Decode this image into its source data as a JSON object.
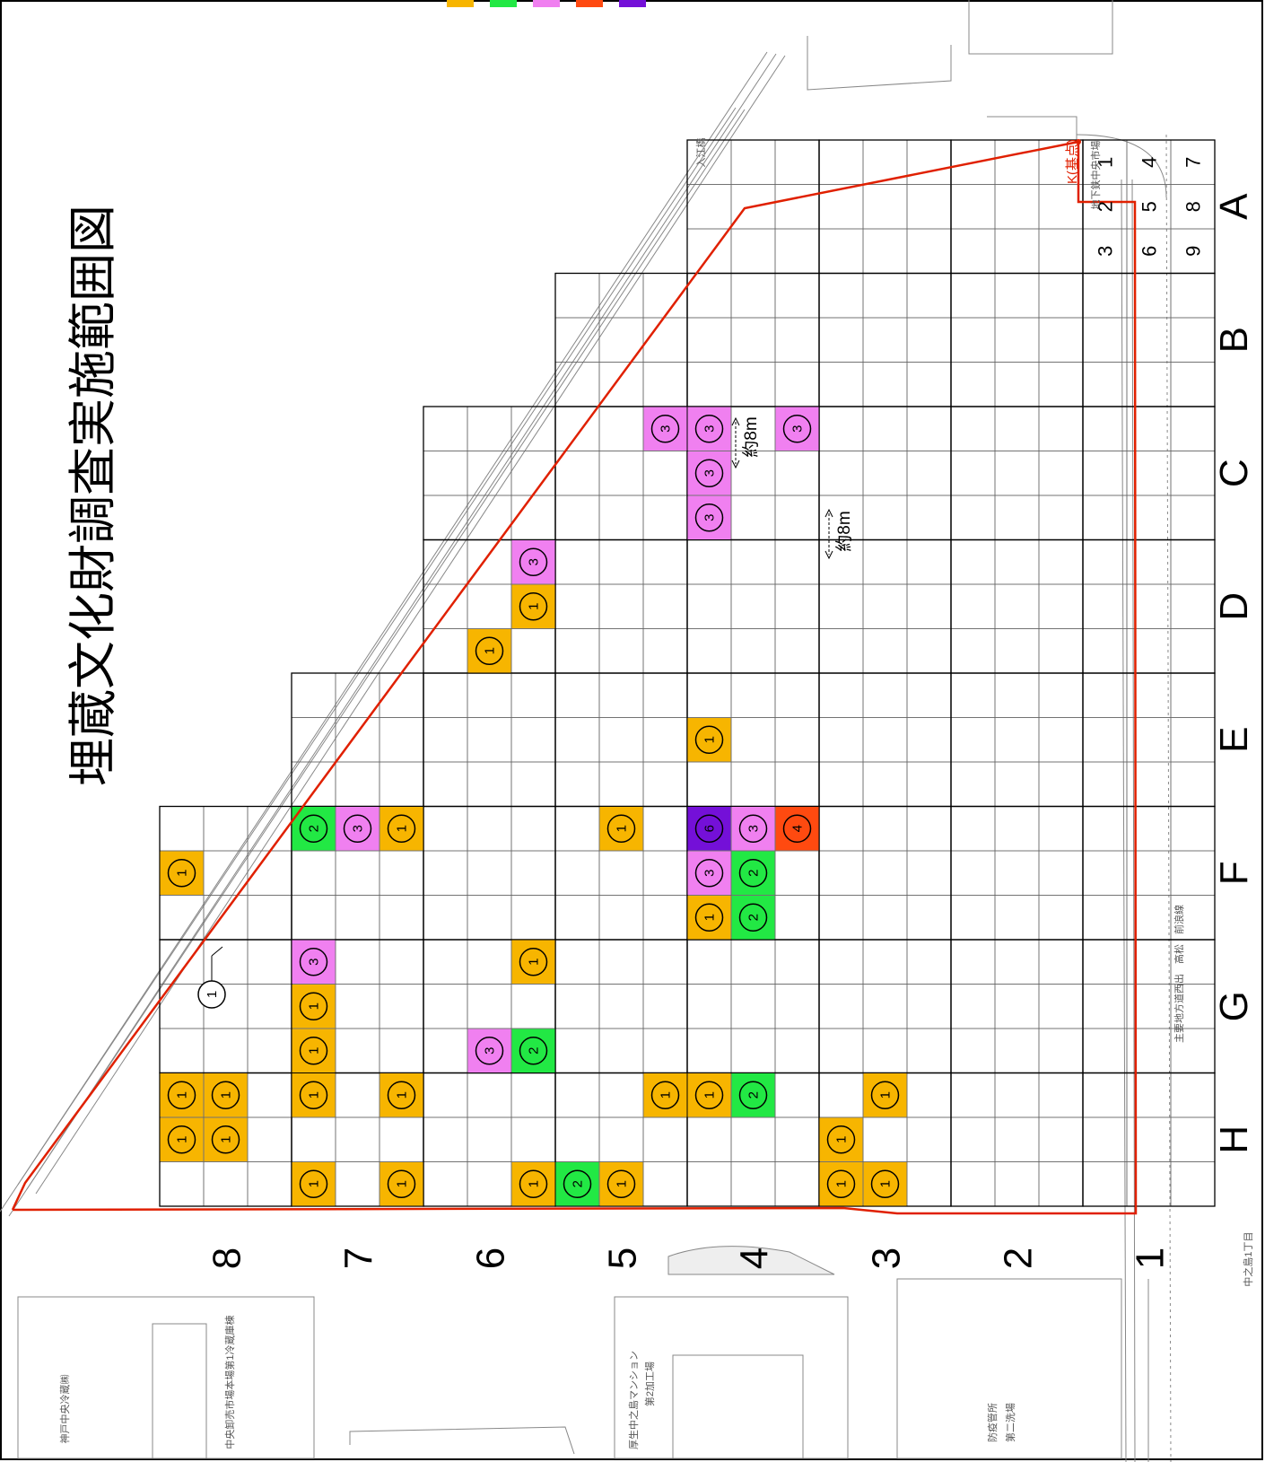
{
  "title": "埋蔵文化財調査実施範囲図",
  "colors": {
    "level1": "#F7B500",
    "level2": "#22E844",
    "level3": "#F080F0",
    "level4": "#FF4A10",
    "level6": "#7410D8",
    "boundary": "#E02000",
    "grid": "#000000"
  },
  "legend_swatches": [
    "level1",
    "level2",
    "level3",
    "level4",
    "level6"
  ],
  "columns": [
    {
      "label": "A"
    },
    {
      "label": "B"
    },
    {
      "label": "C"
    },
    {
      "label": "D"
    },
    {
      "label": "E"
    },
    {
      "label": "F"
    },
    {
      "label": "G"
    },
    {
      "label": "H"
    }
  ],
  "rows": [
    {
      "label": "8"
    },
    {
      "label": "7"
    },
    {
      "label": "6"
    },
    {
      "label": "5"
    },
    {
      "label": "4"
    },
    {
      "label": "3"
    },
    {
      "label": "2"
    },
    {
      "label": "1"
    }
  ],
  "subgrid_numbers": [
    "1",
    "2",
    "3",
    "4",
    "5",
    "6",
    "7",
    "8",
    "9"
  ],
  "cells": [
    {
      "col": "C",
      "row": "5",
      "sub": "7",
      "value": "3"
    },
    {
      "col": "C",
      "row": "4",
      "sub": "7",
      "value": "3"
    },
    {
      "col": "C",
      "row": "4",
      "sub": "3",
      "value": "3"
    },
    {
      "col": "C",
      "row": "4",
      "sub": "2",
      "value": "3"
    },
    {
      "col": "C",
      "row": "4",
      "sub": "1",
      "value": "3"
    },
    {
      "col": "D",
      "row": "6",
      "sub": "7",
      "value": "3"
    },
    {
      "col": "D",
      "row": "6",
      "sub": "8",
      "value": "1"
    },
    {
      "col": "D",
      "row": "6",
      "sub": "6",
      "value": "1"
    },
    {
      "col": "E",
      "row": "4",
      "sub": "2",
      "value": "1"
    },
    {
      "col": "F",
      "row": "7",
      "sub": "7",
      "value": "1"
    },
    {
      "col": "F",
      "row": "7",
      "sub": "4",
      "value": "3"
    },
    {
      "col": "F",
      "row": "7",
      "sub": "1",
      "value": "2"
    },
    {
      "col": "F",
      "row": "8",
      "sub": "2",
      "value": "1"
    },
    {
      "col": "F",
      "row": "5",
      "sub": "4",
      "value": "1"
    },
    {
      "col": "F",
      "row": "4",
      "sub": "7",
      "value": "4"
    },
    {
      "col": "F",
      "row": "4",
      "sub": "4",
      "value": "3"
    },
    {
      "col": "F",
      "row": "4",
      "sub": "5",
      "value": "2"
    },
    {
      "col": "F",
      "row": "4",
      "sub": "1",
      "value": "6"
    },
    {
      "col": "F",
      "row": "4",
      "sub": "2",
      "value": "3"
    },
    {
      "col": "F",
      "row": "4",
      "sub": "3",
      "value": "1"
    },
    {
      "col": "F",
      "row": "4",
      "sub": "6",
      "value": "2"
    },
    {
      "col": "G",
      "row": "7",
      "sub": "1",
      "value": "3"
    },
    {
      "col": "G",
      "row": "7",
      "sub": "2",
      "value": "1"
    },
    {
      "col": "G",
      "row": "7",
      "sub": "3",
      "value": "1"
    },
    {
      "col": "G",
      "row": "6",
      "sub": "6",
      "value": "3"
    },
    {
      "col": "G",
      "row": "6",
      "sub": "7",
      "value": "1"
    },
    {
      "col": "G",
      "row": "6",
      "sub": "9",
      "value": "2"
    },
    {
      "col": "H",
      "row": "8",
      "sub": "1",
      "value": "1"
    },
    {
      "col": "H",
      "row": "8",
      "sub": "2",
      "value": "1"
    },
    {
      "col": "H",
      "row": "8",
      "sub": "4",
      "value": "1"
    },
    {
      "col": "H",
      "row": "8",
      "sub": "5",
      "value": "1"
    },
    {
      "col": "H",
      "row": "7",
      "sub": "1",
      "value": "1"
    },
    {
      "col": "H",
      "row": "7",
      "sub": "3",
      "value": "1"
    },
    {
      "col": "H",
      "row": "7",
      "sub": "7",
      "value": "1"
    },
    {
      "col": "H",
      "row": "7",
      "sub": "9",
      "value": "1"
    },
    {
      "col": "H",
      "row": "6",
      "sub": "9",
      "value": "1"
    },
    {
      "col": "H",
      "row": "5",
      "sub": "7",
      "value": "1"
    },
    {
      "col": "H",
      "row": "5",
      "sub": "6",
      "value": "1"
    },
    {
      "col": "H",
      "row": "5",
      "sub": "3",
      "value": "2"
    },
    {
      "col": "H",
      "row": "4",
      "sub": "1",
      "value": "1"
    },
    {
      "col": "H",
      "row": "4",
      "sub": "4",
      "value": "2"
    },
    {
      "col": "H",
      "row": "3",
      "sub": "4",
      "value": "1"
    },
    {
      "col": "H",
      "row": "3",
      "sub": "2",
      "value": "1"
    },
    {
      "col": "H",
      "row": "3",
      "sub": "3",
      "value": "1"
    },
    {
      "col": "H",
      "row": "3",
      "sub": "6",
      "value": "1"
    }
  ],
  "outside_marker": {
    "value": "1"
  },
  "dimension_labels": [
    "約8m",
    "約8m"
  ],
  "base_point_label": "K(基点)",
  "map_labels": {
    "top_right": "入江橋",
    "road_label": "主要地方道西出　高松　前浪線",
    "bottom_coord": "中之島1丁目",
    "corner_box": "地下鉄中央市場",
    "building_1": "神戸中央冷蔵㈱",
    "building_2": "中央卸売市場本場第1冷蔵庫棟",
    "building_3": "厚生中之島マンション",
    "building_4": "第2加工場",
    "building_5": "防疫管所",
    "building_6": "第二洗場"
  }
}
